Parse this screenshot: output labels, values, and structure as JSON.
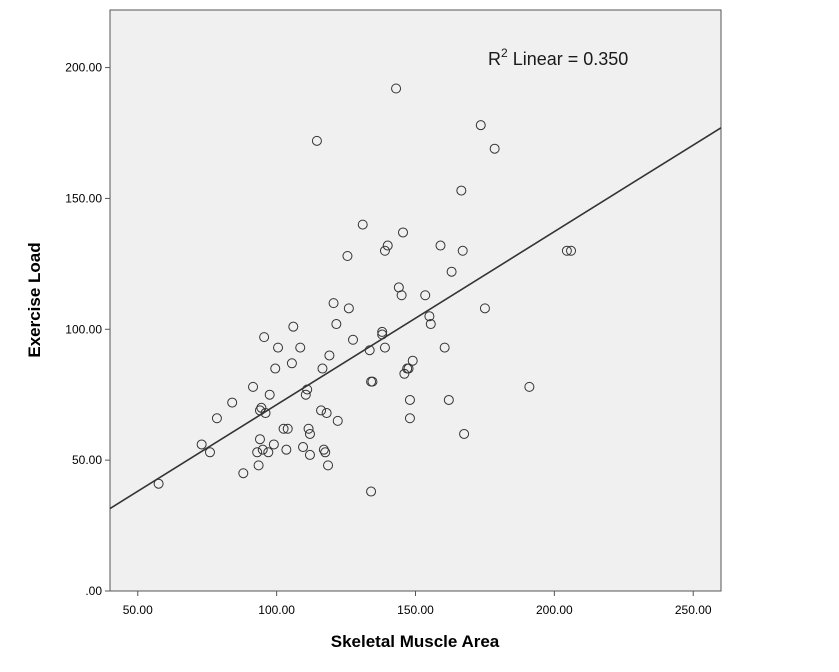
{
  "chart_data": {
    "type": "scatter",
    "xlabel": "Skeletal Muscle Area",
    "ylabel": "Exercise Load",
    "xlim": [
      40,
      260
    ],
    "ylim": [
      0,
      222
    ],
    "xticks": [
      "50.00",
      "100.00",
      "150.00",
      "200.00",
      "250.00"
    ],
    "yticks": [
      ".00",
      "50.00",
      "100.00",
      "150.00",
      "200.00"
    ],
    "annotation": {
      "r": "R",
      "sup": "2",
      "text": " Linear = 0.350"
    },
    "fit_line": {
      "x": [
        40,
        260
      ],
      "y": [
        31.5,
        177
      ]
    },
    "grid": false,
    "colors": {
      "plot_bg": "#f0f0f0",
      "marker": "#333333",
      "line": "#333333"
    },
    "points": [
      [
        57.5,
        41
      ],
      [
        73,
        56
      ],
      [
        76,
        53
      ],
      [
        78.5,
        66
      ],
      [
        84,
        72
      ],
      [
        88,
        45
      ],
      [
        91.5,
        78
      ],
      [
        93,
        53
      ],
      [
        93.5,
        48
      ],
      [
        94,
        58
      ],
      [
        94,
        69
      ],
      [
        94.5,
        70
      ],
      [
        95,
        54
      ],
      [
        95.5,
        97
      ],
      [
        96,
        68
      ],
      [
        97,
        53
      ],
      [
        97.5,
        75
      ],
      [
        99,
        56
      ],
      [
        99.5,
        85
      ],
      [
        100.5,
        93
      ],
      [
        102.5,
        62
      ],
      [
        103.5,
        54
      ],
      [
        104,
        62
      ],
      [
        105.5,
        87
      ],
      [
        106,
        101
      ],
      [
        108.5,
        93
      ],
      [
        109.5,
        55
      ],
      [
        110.5,
        75
      ],
      [
        111,
        77
      ],
      [
        111.5,
        62
      ],
      [
        112,
        60
      ],
      [
        112,
        52
      ],
      [
        114.5,
        172
      ],
      [
        116,
        69
      ],
      [
        116.5,
        85
      ],
      [
        117,
        54
      ],
      [
        117.5,
        53
      ],
      [
        118,
        68
      ],
      [
        118.5,
        48
      ],
      [
        119,
        90
      ],
      [
        120.5,
        110
      ],
      [
        121.5,
        102
      ],
      [
        122,
        65
      ],
      [
        125.5,
        128
      ],
      [
        126,
        108
      ],
      [
        127.5,
        96
      ],
      [
        131,
        140
      ],
      [
        133.5,
        92
      ],
      [
        134,
        80
      ],
      [
        134.5,
        80
      ],
      [
        134,
        38
      ],
      [
        138,
        98
      ],
      [
        138,
        99
      ],
      [
        139,
        93
      ],
      [
        139,
        130
      ],
      [
        140,
        132
      ],
      [
        143,
        192
      ],
      [
        144,
        116
      ],
      [
        145,
        113
      ],
      [
        145.5,
        137
      ],
      [
        146,
        83
      ],
      [
        147,
        85
      ],
      [
        147.5,
        85
      ],
      [
        148,
        73
      ],
      [
        148,
        66
      ],
      [
        149,
        88
      ],
      [
        153.5,
        113
      ],
      [
        155,
        105
      ],
      [
        155.5,
        102
      ],
      [
        159,
        132
      ],
      [
        160.5,
        93
      ],
      [
        162,
        73
      ],
      [
        163,
        122
      ],
      [
        166.5,
        153
      ],
      [
        167,
        130
      ],
      [
        167.5,
        60
      ],
      [
        173.5,
        178
      ],
      [
        175,
        108
      ],
      [
        178.5,
        169
      ],
      [
        191,
        78
      ],
      [
        204.5,
        130
      ],
      [
        206,
        130
      ]
    ]
  }
}
